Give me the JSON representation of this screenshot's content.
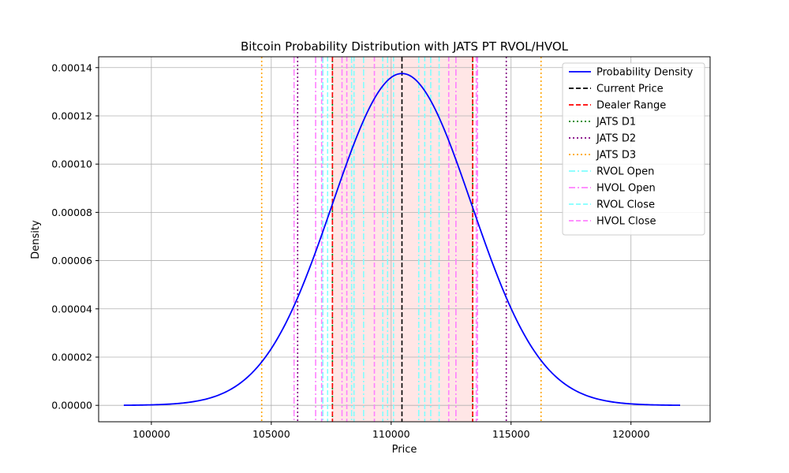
{
  "chart_data": {
    "type": "line",
    "title": "Bitcoin Probability Distribution with JATS PT RVOL/HVOL",
    "xlabel": "Price",
    "ylabel": "Density",
    "xlim": [
      97800,
      123300
    ],
    "ylim": [
      -6.8e-06,
      0.0001445
    ],
    "xticks": [
      100000,
      105000,
      110000,
      115000,
      120000
    ],
    "yticks": [
      0.0,
      2e-05,
      4e-05,
      6e-05,
      8e-05,
      0.0001,
      0.00012,
      0.00014
    ],
    "ytick_labels": [
      "0.00000",
      "0.00002",
      "0.00004",
      "0.00006",
      "0.00008",
      "0.00010",
      "0.00012",
      "0.00014"
    ],
    "grid": true,
    "legend_position": "top-right",
    "series": [
      {
        "name": "Probability Density",
        "kind": "curve",
        "distribution": "normal",
        "mean": 110450,
        "std": 2900,
        "x_range": [
          98850,
          122050
        ],
        "color": "#0000ff"
      },
      {
        "name": "Current Price",
        "kind": "vline",
        "color": "#000000",
        "style": "dashed",
        "x": [
          110450
        ]
      },
      {
        "name": "Dealer Range",
        "kind": "vline",
        "color": "#ff0000",
        "style": "dashed",
        "x": [
          107550,
          113400
        ]
      },
      {
        "name": "JATS D1",
        "kind": "vline",
        "color": "#008000",
        "style": "dotted",
        "x": [
          107550,
          113400
        ]
      },
      {
        "name": "JATS D2",
        "kind": "vline",
        "color": "#800080",
        "style": "dotted",
        "x": [
          106100,
          114800
        ]
      },
      {
        "name": "JATS D3",
        "kind": "vline",
        "color": "#ffa500",
        "style": "dotted",
        "x": [
          104600,
          116250
        ]
      },
      {
        "name": "RVOL Open",
        "kind": "vline",
        "color": "#80ffff",
        "style": "dashdot",
        "x": [
          107150,
          108350,
          108850,
          109850,
          111150,
          111650
        ]
      },
      {
        "name": "HVOL Open",
        "kind": "vline",
        "color": "#ff80ff",
        "style": "dashdot",
        "x": [
          105950,
          106850,
          107950,
          112700,
          113600
        ]
      },
      {
        "name": "RVOL Close",
        "kind": "vline",
        "color": "#80ffff",
        "style": "dashed",
        "x": [
          107350,
          108450,
          109650,
          110100,
          111400,
          112000
        ]
      },
      {
        "name": "HVOL Close",
        "kind": "vline",
        "color": "#ff80ff",
        "style": "dashed",
        "x": [
          107100,
          108150,
          109300,
          112400,
          113550
        ]
      }
    ],
    "shaded_region": {
      "x": [
        107550,
        113400
      ],
      "color": "#ffc0c0",
      "opacity": 0.4
    }
  }
}
